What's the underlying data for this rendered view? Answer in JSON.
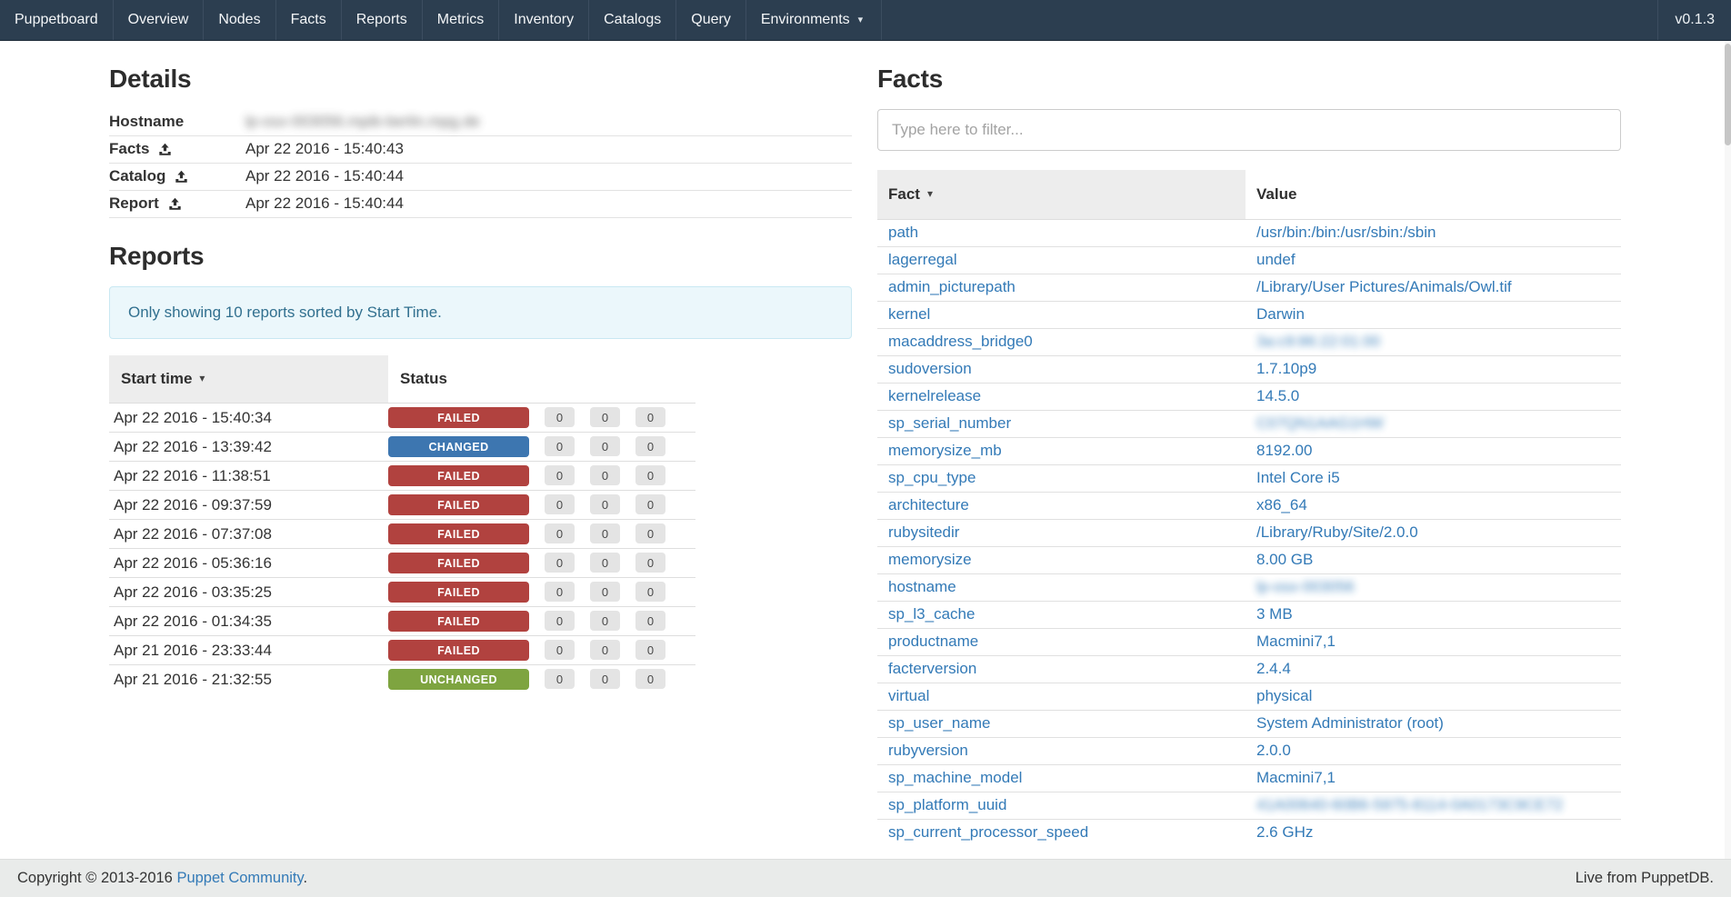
{
  "navbar": {
    "brand": "Puppetboard",
    "items": [
      "Overview",
      "Nodes",
      "Facts",
      "Reports",
      "Metrics",
      "Inventory",
      "Catalogs",
      "Query"
    ],
    "environments": "Environments",
    "version": "v0.1.3"
  },
  "details": {
    "title": "Details",
    "rows": [
      {
        "label": "Hostname",
        "icon": false,
        "value": "lp-osx-003056.mpib-berlin.mpg.de",
        "blur": true
      },
      {
        "label": "Facts",
        "icon": true,
        "value": "Apr 22 2016 - 15:40:43",
        "blur": false
      },
      {
        "label": "Catalog",
        "icon": true,
        "value": "Apr 22 2016 - 15:40:44",
        "blur": false
      },
      {
        "label": "Report",
        "icon": true,
        "value": "Apr 22 2016 - 15:40:44",
        "blur": false
      }
    ]
  },
  "reports": {
    "title": "Reports",
    "alert": "Only showing 10 reports sorted by Start Time.",
    "columns": [
      "Start time",
      "Status"
    ],
    "status_colors": {
      "FAILED": "#b1423f",
      "CHANGED": "#3d76b0",
      "UNCHANGED": "#7ea440"
    },
    "rows": [
      {
        "start": "Apr 22 2016 - 15:40:34",
        "status": "FAILED",
        "counts": [
          "0",
          "0",
          "0"
        ]
      },
      {
        "start": "Apr 22 2016 - 13:39:42",
        "status": "CHANGED",
        "counts": [
          "0",
          "0",
          "0"
        ]
      },
      {
        "start": "Apr 22 2016 - 11:38:51",
        "status": "FAILED",
        "counts": [
          "0",
          "0",
          "0"
        ]
      },
      {
        "start": "Apr 22 2016 - 09:37:59",
        "status": "FAILED",
        "counts": [
          "0",
          "0",
          "0"
        ]
      },
      {
        "start": "Apr 22 2016 - 07:37:08",
        "status": "FAILED",
        "counts": [
          "0",
          "0",
          "0"
        ]
      },
      {
        "start": "Apr 22 2016 - 05:36:16",
        "status": "FAILED",
        "counts": [
          "0",
          "0",
          "0"
        ]
      },
      {
        "start": "Apr 22 2016 - 03:35:25",
        "status": "FAILED",
        "counts": [
          "0",
          "0",
          "0"
        ]
      },
      {
        "start": "Apr 22 2016 - 01:34:35",
        "status": "FAILED",
        "counts": [
          "0",
          "0",
          "0"
        ]
      },
      {
        "start": "Apr 21 2016 - 23:33:44",
        "status": "FAILED",
        "counts": [
          "0",
          "0",
          "0"
        ]
      },
      {
        "start": "Apr 21 2016 - 21:32:55",
        "status": "UNCHANGED",
        "counts": [
          "0",
          "0",
          "0"
        ]
      }
    ]
  },
  "facts": {
    "title": "Facts",
    "filter_placeholder": "Type here to filter...",
    "columns": [
      "Fact",
      "Value"
    ],
    "rows": [
      {
        "fact": "path",
        "value": "/usr/bin:/bin:/usr/sbin:/sbin",
        "blur": false
      },
      {
        "fact": "lagerregal",
        "value": "undef",
        "blur": false
      },
      {
        "fact": "admin_picturepath",
        "value": "/Library/User Pictures/Animals/Owl.tif",
        "blur": false
      },
      {
        "fact": "kernel",
        "value": "Darwin",
        "blur": false
      },
      {
        "fact": "macaddress_bridge0",
        "value": "3a:c9:86:22:01:00",
        "blur": true
      },
      {
        "fact": "sudoversion",
        "value": "1.7.10p9",
        "blur": false
      },
      {
        "fact": "kernelrelease",
        "value": "14.5.0",
        "blur": false
      },
      {
        "fact": "sp_serial_number",
        "value": "C07QN1AAG1HW",
        "blur": true
      },
      {
        "fact": "memorysize_mb",
        "value": "8192.00",
        "blur": false
      },
      {
        "fact": "sp_cpu_type",
        "value": "Intel Core i5",
        "blur": false
      },
      {
        "fact": "architecture",
        "value": "x86_64",
        "blur": false
      },
      {
        "fact": "rubysitedir",
        "value": "/Library/Ruby/Site/2.0.0",
        "blur": false
      },
      {
        "fact": "memorysize",
        "value": "8.00 GB",
        "blur": false
      },
      {
        "fact": "hostname",
        "value": "lp-osx-003056",
        "blur": true
      },
      {
        "fact": "sp_l3_cache",
        "value": "3 MB",
        "blur": false
      },
      {
        "fact": "productname",
        "value": "Macmini7,1",
        "blur": false
      },
      {
        "fact": "facterversion",
        "value": "2.4.4",
        "blur": false
      },
      {
        "fact": "virtual",
        "value": "physical",
        "blur": false
      },
      {
        "fact": "sp_user_name",
        "value": "System Administrator (root)",
        "blur": false
      },
      {
        "fact": "rubyversion",
        "value": "2.0.0",
        "blur": false
      },
      {
        "fact": "sp_machine_model",
        "value": "Macmini7,1",
        "blur": false
      },
      {
        "fact": "sp_platform_uuid",
        "value": "41A00640-60B6-5975-8114-0A0173C9CE72",
        "blur": true
      },
      {
        "fact": "sp_current_processor_speed",
        "value": "2.6 GHz",
        "blur": false
      }
    ]
  },
  "footer": {
    "copyright_prefix": "Copyright © 2013-2016 ",
    "copyright_link": "Puppet Community",
    "copyright_suffix": ".",
    "live": "Live from PuppetDB."
  }
}
